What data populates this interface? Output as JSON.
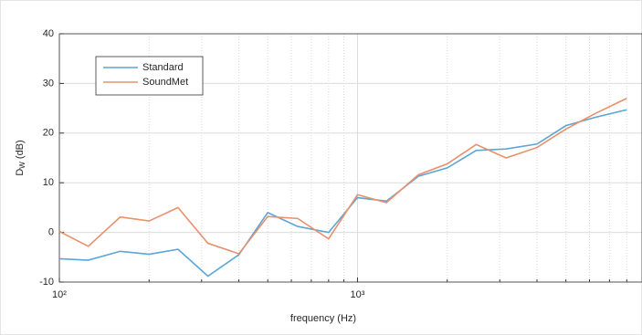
{
  "chart_data": {
    "type": "line",
    "ylabel": [
      "D",
      "W",
      " (dB)"
    ],
    "xlabel": "frequency (Hz)",
    "x": [
      100,
      125,
      160,
      200,
      250,
      315,
      400,
      500,
      630,
      800,
      1000,
      1250,
      1600,
      2000,
      2500,
      3150,
      4000,
      5000,
      6300,
      8000
    ],
    "series": [
      {
        "name": "Standard",
        "color": "#5aa6d6",
        "values": [
          -5.3,
          -5.6,
          -3.8,
          -4.4,
          -3.4,
          -8.8,
          -4.5,
          4.0,
          1.2,
          0.0,
          7.0,
          6.3,
          11.3,
          13.0,
          16.5,
          16.8,
          17.8,
          21.5,
          23.2,
          24.7
        ]
      },
      {
        "name": "SoundMet",
        "color": "#e8906c",
        "values": [
          0.2,
          -2.8,
          3.1,
          2.3,
          5.0,
          -2.2,
          -4.3,
          3.2,
          2.8,
          -1.3,
          7.6,
          6.0,
          11.6,
          13.8,
          17.7,
          15.0,
          17.1,
          20.8,
          24.0,
          27.0
        ]
      }
    ],
    "xscale": "log",
    "xlim": [
      100,
      9000
    ],
    "xticks": [
      {
        "value": 100,
        "label": "10²"
      },
      {
        "value": 1000,
        "label": "10³"
      }
    ],
    "ylim": [
      -10,
      40
    ],
    "yticks": [
      -10,
      0,
      10,
      20,
      30,
      40
    ],
    "grid": true,
    "legend": "upper left"
  }
}
